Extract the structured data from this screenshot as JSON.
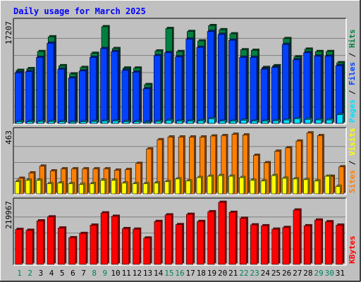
{
  "chart_data": [
    {
      "type": "bar",
      "title": "Daily usage for March 2025",
      "ylabel_parts": [
        "Pages",
        " / ",
        "Files",
        " / ",
        "Hits"
      ],
      "ymax_label": "17207",
      "ylim": [
        0,
        17207
      ],
      "grid": true,
      "categories": [
        "1",
        "2",
        "3",
        "4",
        "5",
        "6",
        "7",
        "8",
        "9",
        "10",
        "11",
        "12",
        "13",
        "14",
        "15",
        "16",
        "17",
        "18",
        "19",
        "20",
        "21",
        "22",
        "23",
        "24",
        "25",
        "26",
        "27",
        "28",
        "29",
        "30",
        "31"
      ],
      "series": [
        {
          "name": "Hits",
          "values": [
            9100,
            9400,
            12300,
            14800,
            9900,
            8500,
            9600,
            12000,
            16500,
            12800,
            9500,
            9500,
            6700,
            12400,
            16200,
            12300,
            15700,
            14100,
            16700,
            16000,
            15300,
            12600,
            12500,
            9600,
            9900,
            14500,
            11400,
            12700,
            12300,
            12300,
            10400
          ]
        },
        {
          "name": "Files",
          "values": [
            8700,
            8900,
            11300,
            13700,
            9300,
            7800,
            9000,
            11300,
            12800,
            12300,
            9100,
            8800,
            6000,
            11600,
            12100,
            11400,
            14400,
            13000,
            15700,
            15200,
            14200,
            11300,
            11300,
            9300,
            9600,
            13500,
            10900,
            12100,
            11500,
            11500,
            9900
          ]
        },
        {
          "name": "Pages",
          "values": [
            400,
            400,
            450,
            450,
            400,
            350,
            400,
            450,
            500,
            500,
            400,
            400,
            300,
            450,
            600,
            500,
            500,
            550,
            900,
            500,
            500,
            650,
            500,
            500,
            550,
            700,
            900,
            800,
            700,
            700,
            1600
          ]
        }
      ]
    },
    {
      "type": "bar",
      "ylabel_parts": [
        "Sites",
        " / ",
        "Visits"
      ],
      "ymax_label": "463",
      "ylim": [
        0,
        463
      ],
      "grid": true,
      "categories": [
        "1",
        "2",
        "3",
        "4",
        "5",
        "6",
        "7",
        "8",
        "9",
        "10",
        "11",
        "12",
        "13",
        "14",
        "15",
        "16",
        "17",
        "18",
        "19",
        "20",
        "21",
        "22",
        "23",
        "24",
        "25",
        "26",
        "27",
        "28",
        "29",
        "30",
        "31"
      ],
      "series": [
        {
          "name": "Visits",
          "values": [
            120,
            160,
            210,
            175,
            190,
            190,
            190,
            190,
            190,
            180,
            185,
            230,
            337,
            405,
            425,
            425,
            425,
            425,
            432,
            435,
            445,
            440,
            290,
            235,
            320,
            345,
            395,
            455,
            435,
            135,
            205
          ]
        },
        {
          "name": "Sites",
          "values": [
            95,
            105,
            105,
            80,
            85,
            80,
            75,
            80,
            105,
            105,
            85,
            80,
            80,
            85,
            95,
            115,
            100,
            125,
            135,
            140,
            135,
            125,
            105,
            100,
            140,
            120,
            115,
            110,
            100,
            135,
            60
          ]
        }
      ]
    },
    {
      "type": "bar",
      "ylabel_parts": [
        "KBytes"
      ],
      "ymax_label": "219967",
      "ylim": [
        0,
        219967
      ],
      "grid": true,
      "categories": [
        "1",
        "2",
        "3",
        "4",
        "5",
        "6",
        "7",
        "8",
        "9",
        "10",
        "11",
        "12",
        "13",
        "14",
        "15",
        "16",
        "17",
        "18",
        "19",
        "20",
        "21",
        "22",
        "23",
        "24",
        "25",
        "26",
        "27",
        "28",
        "29",
        "30",
        "31"
      ],
      "series": [
        {
          "name": "KBytes",
          "values": [
            125000,
            122000,
            155000,
            169000,
            130000,
            96000,
            111000,
            140000,
            183000,
            171000,
            128000,
            126000,
            95000,
            153000,
            176000,
            142000,
            178000,
            153000,
            187000,
            220000,
            185000,
            164000,
            141000,
            138000,
            126000,
            132000,
            193000,
            138000,
            158000,
            152000,
            140000
          ]
        }
      ]
    }
  ],
  "weekend_days": [
    "1",
    "2",
    "8",
    "9",
    "15",
    "16",
    "22",
    "23",
    "29",
    "30"
  ],
  "colors": {
    "title": "#0000ff",
    "label_default": "#000000",
    "label_weekend": "#00805f",
    "hits": "#008040",
    "files": "#0040ff",
    "pages": "#00e0ff",
    "visits": "#ff8000",
    "sites": "#ffff00",
    "kbytes": "#ff0000",
    "panel_bg": "#c0c0c0",
    "grid": "#808080"
  }
}
